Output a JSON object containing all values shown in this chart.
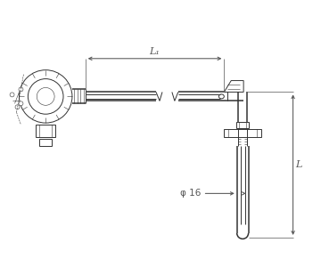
{
  "bg_color": "#ffffff",
  "line_color": "#333333",
  "lw": 0.7,
  "lw_thick": 1.1,
  "lw_thin": 0.4,
  "L1_label": "L₁",
  "L_label": "L",
  "phi_label": "φ 16",
  "figsize": [
    3.6,
    3.0
  ],
  "dpi": 100
}
